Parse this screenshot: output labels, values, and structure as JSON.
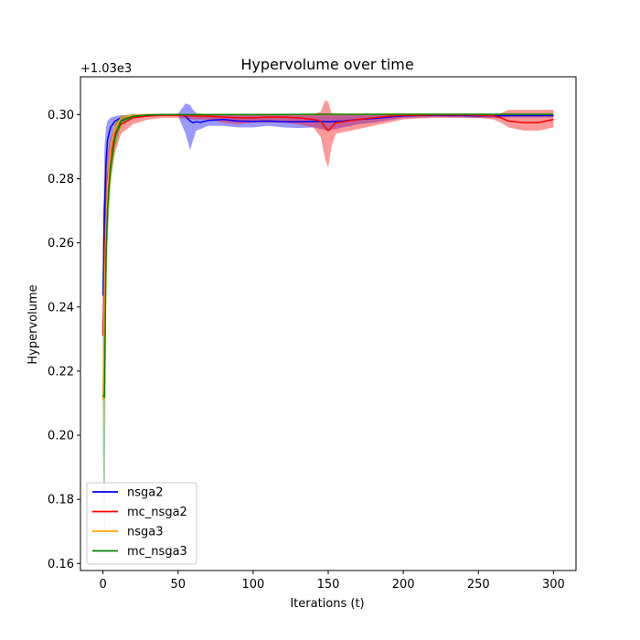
{
  "chart_data": {
    "type": "line",
    "title": "Hypervolume over time",
    "xlabel": "Iterations (t)",
    "ylabel": "Hypervolume",
    "offset_label": "+1.03e3",
    "xlim": [
      -15,
      315
    ],
    "ylim": [
      0.1578,
      0.3118
    ],
    "xticks": [
      0,
      50,
      100,
      150,
      200,
      250,
      300
    ],
    "yticks": [
      0.16,
      0.18,
      0.2,
      0.22,
      0.24,
      0.26,
      0.28,
      0.3
    ],
    "ytick_labels": [
      "0.16",
      "0.18",
      "0.20",
      "0.22",
      "0.24",
      "0.26",
      "0.28",
      "0.30"
    ],
    "legend": "lower-left",
    "series": [
      {
        "name": "nsga2",
        "color": "#0000ff",
        "x": [
          0,
          1,
          2,
          3,
          5,
          8,
          12,
          20,
          30,
          40,
          50,
          55,
          58,
          60,
          62,
          65,
          70,
          80,
          90,
          100,
          110,
          120,
          130,
          140,
          150,
          160,
          170,
          180,
          190,
          200,
          210,
          220,
          230,
          240,
          250,
          260,
          270,
          280,
          290,
          300
        ],
        "y": [
          0.2435,
          0.27,
          0.285,
          0.292,
          0.296,
          0.298,
          0.299,
          0.2997,
          0.2999,
          0.3,
          0.3,
          0.2995,
          0.298,
          0.2975,
          0.2978,
          0.2976,
          0.2982,
          0.2985,
          0.298,
          0.2979,
          0.298,
          0.2978,
          0.2978,
          0.2979,
          0.2978,
          0.298,
          0.2985,
          0.2988,
          0.2992,
          0.2996,
          0.2997,
          0.2998,
          0.2997,
          0.2997,
          0.2996,
          0.2996,
          0.2997,
          0.2997,
          0.2997,
          0.2997
        ],
        "upper": [
          0.26,
          0.29,
          0.296,
          0.298,
          0.299,
          0.2995,
          0.2998,
          0.3,
          0.3001,
          0.3002,
          0.3003,
          0.3035,
          0.303,
          0.3015,
          0.3005,
          0.3003,
          0.3002,
          0.3002,
          0.3002,
          0.3001,
          0.3001,
          0.3001,
          0.3001,
          0.3001,
          0.3002,
          0.3002,
          0.3002,
          0.3002,
          0.3002,
          0.3002,
          0.3002,
          0.3002,
          0.3002,
          0.3002,
          0.3002,
          0.3002,
          0.3002,
          0.3002,
          0.3002,
          0.3002
        ],
        "lower": [
          0.233,
          0.25,
          0.27,
          0.283,
          0.29,
          0.296,
          0.298,
          0.299,
          0.2994,
          0.2996,
          0.2996,
          0.294,
          0.289,
          0.292,
          0.295,
          0.2955,
          0.2965,
          0.2965,
          0.296,
          0.296,
          0.2965,
          0.296,
          0.2958,
          0.296,
          0.295,
          0.296,
          0.297,
          0.2975,
          0.2982,
          0.299,
          0.2991,
          0.2992,
          0.2992,
          0.2991,
          0.299,
          0.299,
          0.2991,
          0.2991,
          0.2991,
          0.2991
        ]
      },
      {
        "name": "mc_nsga2",
        "color": "#ff0000",
        "x": [
          0,
          1,
          2,
          3,
          5,
          8,
          12,
          20,
          30,
          40,
          50,
          60,
          70,
          80,
          90,
          100,
          110,
          120,
          130,
          140,
          145,
          148,
          150,
          152,
          155,
          160,
          170,
          180,
          190,
          200,
          210,
          220,
          230,
          240,
          250,
          260,
          265,
          270,
          280,
          290,
          300
        ],
        "y": [
          0.231,
          0.255,
          0.27,
          0.28,
          0.288,
          0.294,
          0.297,
          0.299,
          0.2996,
          0.2998,
          0.2998,
          0.2996,
          0.2995,
          0.2992,
          0.299,
          0.299,
          0.2992,
          0.2992,
          0.299,
          0.2985,
          0.298,
          0.296,
          0.295,
          0.296,
          0.2975,
          0.2978,
          0.2985,
          0.299,
          0.2995,
          0.2998,
          0.2998,
          0.2999,
          0.2999,
          0.2999,
          0.2998,
          0.2996,
          0.299,
          0.298,
          0.2975,
          0.2975,
          0.2985
        ],
        "upper": [
          0.27,
          0.275,
          0.284,
          0.288,
          0.293,
          0.297,
          0.299,
          0.3,
          0.3001,
          0.3001,
          0.3001,
          0.3001,
          0.3001,
          0.3001,
          0.3001,
          0.3001,
          0.3001,
          0.3001,
          0.3001,
          0.3001,
          0.301,
          0.3045,
          0.304,
          0.3005,
          0.3002,
          0.3002,
          0.3002,
          0.3002,
          0.3002,
          0.3002,
          0.3002,
          0.3002,
          0.3002,
          0.3002,
          0.3002,
          0.3002,
          0.3005,
          0.3015,
          0.3015,
          0.3015,
          0.3015
        ],
        "lower": [
          0.22,
          0.24,
          0.26,
          0.27,
          0.28,
          0.288,
          0.294,
          0.297,
          0.2985,
          0.299,
          0.299,
          0.2985,
          0.2985,
          0.2975,
          0.297,
          0.2975,
          0.2975,
          0.2975,
          0.297,
          0.296,
          0.293,
          0.286,
          0.2835,
          0.29,
          0.294,
          0.2945,
          0.2955,
          0.2965,
          0.2975,
          0.2985,
          0.2988,
          0.299,
          0.299,
          0.299,
          0.299,
          0.2985,
          0.2975,
          0.296,
          0.295,
          0.295,
          0.296
        ]
      },
      {
        "name": "nsga3",
        "color": "#ffa500",
        "x": [
          0,
          1,
          2,
          3,
          5,
          8,
          12,
          20,
          30,
          40,
          50,
          100,
          150,
          200,
          250,
          300
        ],
        "y": [
          0.211,
          0.245,
          0.265,
          0.278,
          0.289,
          0.296,
          0.299,
          0.2998,
          0.3,
          0.3,
          0.3,
          0.3,
          0.3,
          0.3001,
          0.3001,
          0.3001
        ],
        "upper": [
          0.223,
          0.26,
          0.275,
          0.285,
          0.293,
          0.298,
          0.2997,
          0.3001,
          0.3002,
          0.3002,
          0.3002,
          0.3002,
          0.3002,
          0.3002,
          0.3002,
          0.3002
        ],
        "lower": [
          0.199,
          0.23,
          0.255,
          0.27,
          0.285,
          0.294,
          0.2983,
          0.2995,
          0.2998,
          0.2998,
          0.2998,
          0.2998,
          0.2998,
          0.2999,
          0.2999,
          0.2999
        ]
      },
      {
        "name": "mc_nsga3",
        "color": "#008000",
        "x": [
          0,
          1,
          2,
          3,
          5,
          8,
          12,
          20,
          30,
          40,
          50,
          100,
          150,
          200,
          250,
          300
        ],
        "y": [
          0.2125,
          0.212,
          0.255,
          0.27,
          0.284,
          0.293,
          0.298,
          0.2995,
          0.2999,
          0.3,
          0.3,
          0.3,
          0.3001,
          0.3001,
          0.3001,
          0.3001
        ],
        "upper": [
          0.23,
          0.235,
          0.265,
          0.28,
          0.29,
          0.297,
          0.2995,
          0.3001,
          0.3002,
          0.3002,
          0.3002,
          0.3002,
          0.3002,
          0.3002,
          0.3002,
          0.3002
        ],
        "lower": [
          0.195,
          0.164,
          0.24,
          0.26,
          0.278,
          0.29,
          0.2965,
          0.299,
          0.2996,
          0.2998,
          0.2998,
          0.2998,
          0.2999,
          0.2999,
          0.2999,
          0.2999
        ]
      }
    ]
  }
}
